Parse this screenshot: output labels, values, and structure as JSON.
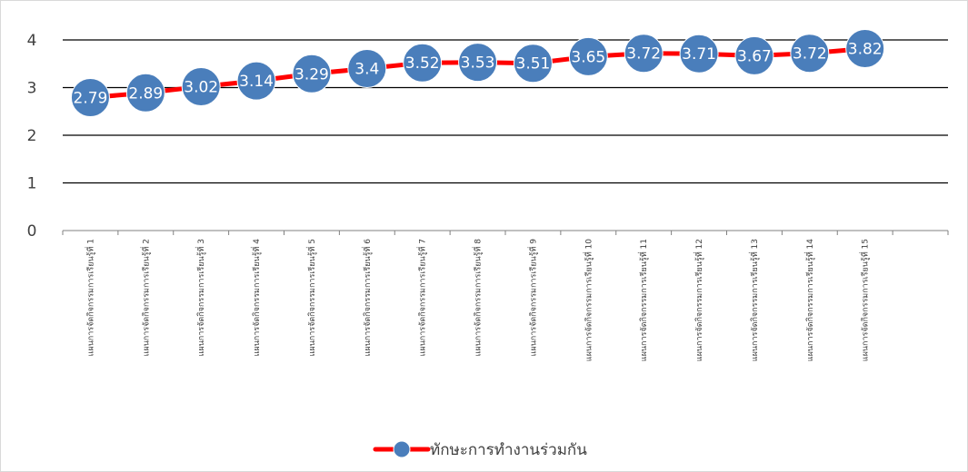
{
  "chart_data": {
    "type": "line",
    "title": "",
    "xlabel": "",
    "ylabel": "",
    "ylim": [
      0,
      4
    ],
    "yticks": [
      "0",
      "1",
      "2",
      "3",
      "4"
    ],
    "grid": true,
    "legend_position": "bottom",
    "categories": [
      "แผนการจัดกิจกรรมการเรียนรู้ที่ 1",
      "แผนการจัดกิจกรรมการเรียนรู้ที่ 2",
      "แผนการจัดกิจกรรมการเรียนรู้ที่ 3",
      "แผนการจัดกิจกรรมการเรียนรู้ที่ 4",
      "แผนการจัดกิจกรรมการเรียนรู้ที่ 5",
      "แผนการจัดกิจกรรมการเรียนรู้ที่ 6",
      "แผนการจัดกิจกรรมการเรียนรู้ที่ 7",
      "แผนการจัดกิจกรรมการเรียนรู้ที่ 8",
      "แผนการจัดกิจกรรมการเรียนรู้ที่ 9",
      "แผนการจัดกิจกรรมการเรียนรู้ที่ 10",
      "แผนการจัดกิจกรรมการเรียนรู้ที่ 11",
      "แผนการจัดกิจกรรมการเรียนรู้ที่ 12",
      "แผนการจัดกิจกรรมการเรียนรู้ที่ 13",
      "แผนการจัดกิจกรรมการเรียนรู้ที่ 14",
      "แผนการจัดกิจกรรมการเรียนรู้ที่ 15"
    ],
    "series": [
      {
        "name": "ทักษะการทำงานร่วมกัน",
        "values": [
          2.79,
          2.89,
          3.02,
          3.14,
          3.29,
          3.4,
          3.52,
          3.53,
          3.51,
          3.65,
          3.72,
          3.71,
          3.67,
          3.72,
          3.82
        ],
        "labels": [
          "2.79",
          "2.89",
          "3.02",
          "3.14",
          "3.29",
          "3.4",
          "3.52",
          "3.53",
          "3.51",
          "3.65",
          "3.72",
          "3.71",
          "3.67",
          "3.72",
          "3.82"
        ],
        "line_color": "#ff0000",
        "marker_color": "#4a7ebb"
      }
    ],
    "colors": {
      "grid": "#000000",
      "tick_text": "#404040",
      "label_text": "#ffffff"
    }
  }
}
